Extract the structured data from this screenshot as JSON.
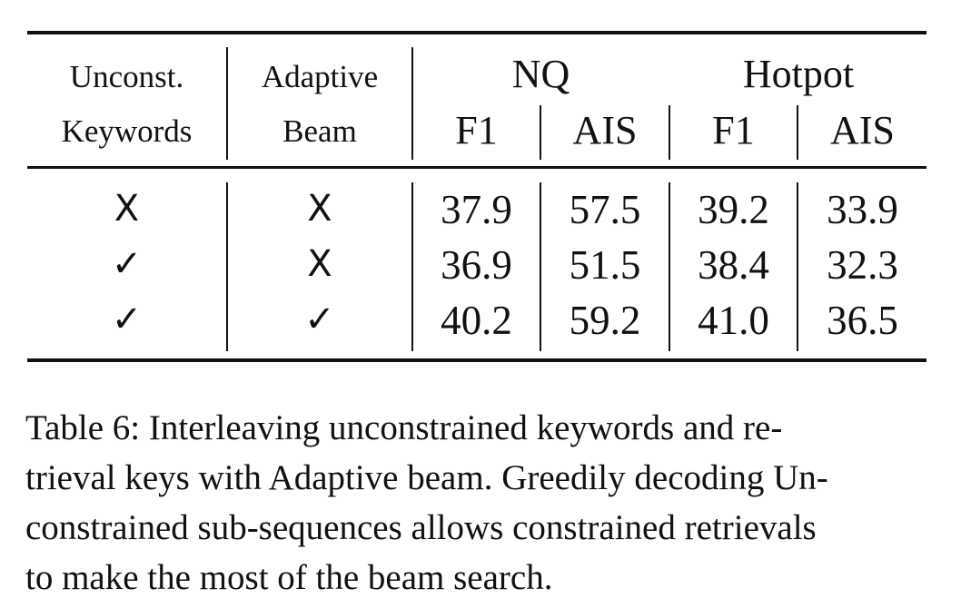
{
  "table": {
    "header_row1": {
      "col1": "Unconst.",
      "col2": "Adaptive",
      "group_nq": "NQ",
      "group_hotpot": "Hotpot"
    },
    "header_row2": {
      "col1": "Keywords",
      "col2": "Beam",
      "nq_f1": "F1",
      "nq_ais": "AIS",
      "hotpot_f1": "F1",
      "hotpot_ais": "AIS"
    },
    "rows": [
      {
        "unconst": "X",
        "adaptive": "X",
        "nq_f1": "37.9",
        "nq_ais": "57.5",
        "hotpot_f1": "39.2",
        "hotpot_ais": "33.9"
      },
      {
        "unconst": "✓",
        "adaptive": "X",
        "nq_f1": "36.9",
        "nq_ais": "51.5",
        "hotpot_f1": "38.4",
        "hotpot_ais": "32.3"
      },
      {
        "unconst": "✓",
        "adaptive": "✓",
        "nq_f1": "40.2",
        "nq_ais": "59.2",
        "hotpot_f1": "41.0",
        "hotpot_ais": "36.5"
      }
    ]
  },
  "caption": {
    "lines": [
      "Table 6: Interleaving unconstrained keywords and re-",
      "trieval keys with Adaptive beam. Greedily decoding Un-",
      "constrained sub-sequences allows constrained retrievals",
      "to make the most of the beam search."
    ]
  }
}
